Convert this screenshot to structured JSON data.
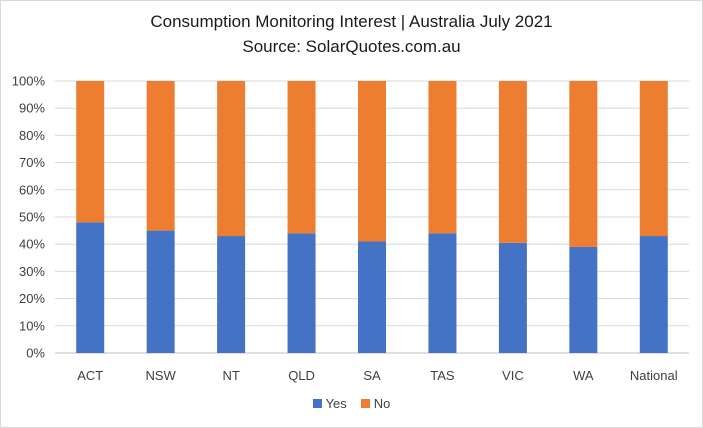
{
  "chart_data": {
    "type": "bar",
    "stacked": true,
    "title": "Consumption Monitoring Interest | Australia July 2021",
    "subtitle": "Source: SolarQuotes.com.au",
    "categories": [
      "ACT",
      "NSW",
      "NT",
      "QLD",
      "SA",
      "TAS",
      "VIC",
      "WA",
      "National"
    ],
    "series": [
      {
        "name": "Yes",
        "color": "#4472c4",
        "values": [
          48,
          45,
          43,
          44,
          41,
          44,
          40.5,
          39,
          43
        ]
      },
      {
        "name": "No",
        "color": "#ed7d31",
        "values": [
          52,
          55,
          57,
          56,
          59,
          56,
          59.5,
          61,
          57
        ]
      }
    ],
    "ylim": [
      0,
      100
    ],
    "yticks": [
      "0%",
      "10%",
      "20%",
      "30%",
      "40%",
      "50%",
      "60%",
      "70%",
      "80%",
      "90%",
      "100%"
    ],
    "grid": true,
    "legend": "bottom"
  }
}
